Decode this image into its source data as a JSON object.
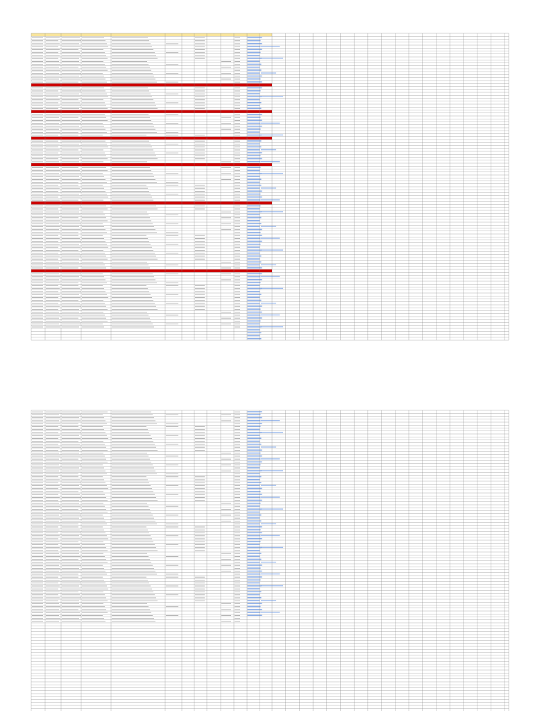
{
  "spreadsheet": {
    "header_fill": "#f8e49c",
    "highlight_fill": "#cc0000",
    "link_fill": "#2b6bd6",
    "grid_color": "#8a8a8a",
    "column_headers": [
      "",
      "",
      "",
      "",
      "",
      "",
      "",
      "",
      "",
      "",
      ""
    ],
    "upper_block": {
      "highlight_rows": [
        17,
        26,
        35,
        44,
        57,
        80
      ],
      "rows": []
    },
    "lower_block": {
      "highlight_rows": [],
      "rows": []
    }
  }
}
